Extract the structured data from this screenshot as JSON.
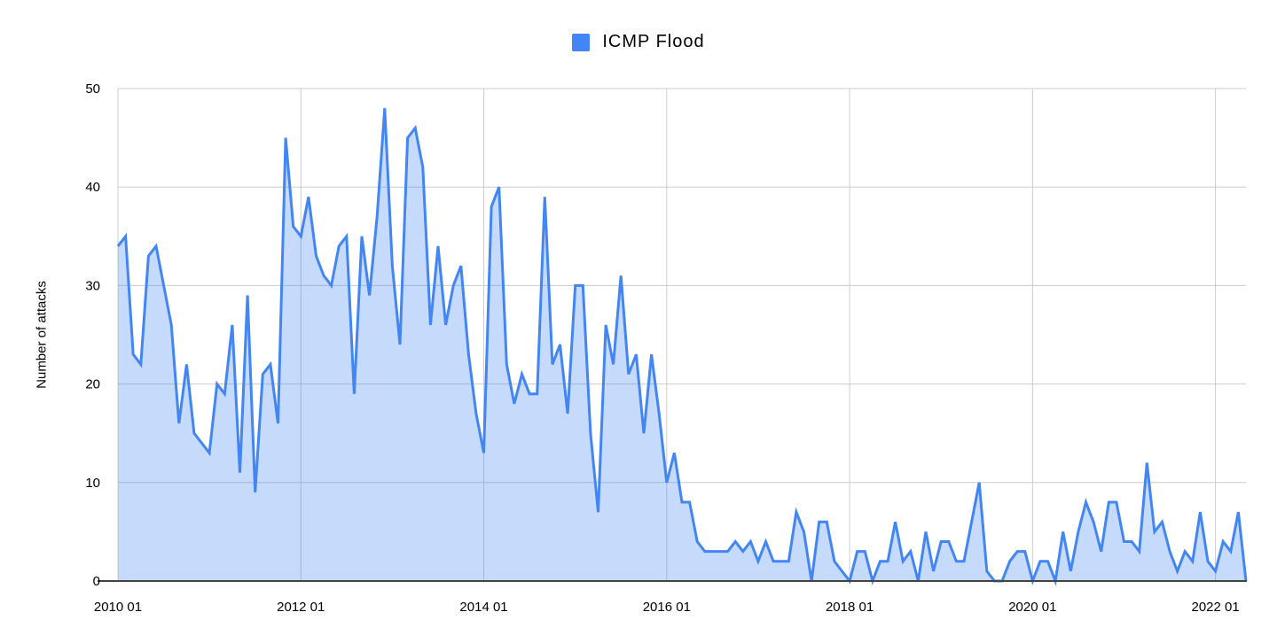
{
  "chart_data": {
    "type": "area",
    "title": "",
    "legend_position": "top",
    "ylabel": "Number of attacks",
    "ylim": [
      0,
      50
    ],
    "y_ticks": [
      0,
      10,
      20,
      30,
      40,
      50
    ],
    "grid": true,
    "x_frequency": "monthly",
    "x_start": "2010 01",
    "x_end": "2022 05",
    "x_tick_labels": [
      "2010 01",
      "2012 01",
      "2014 01",
      "2016 01",
      "2018 01",
      "2020 01",
      "2022 01"
    ],
    "x_tick_interval_months": 24,
    "series": [
      {
        "name": "ICMP Flood",
        "color": "#4285F4",
        "fill": "rgba(66,133,244,0.3)",
        "values": [
          34,
          35,
          23,
          22,
          33,
          34,
          30,
          26,
          16,
          22,
          15,
          14,
          13,
          20,
          19,
          26,
          11,
          29,
          9,
          21,
          22,
          16,
          45,
          36,
          35,
          39,
          33,
          31,
          30,
          34,
          35,
          19,
          35,
          29,
          37,
          48,
          32,
          24,
          45,
          46,
          42,
          26,
          34,
          26,
          30,
          32,
          23,
          17,
          13,
          38,
          40,
          22,
          18,
          21,
          19,
          19,
          39,
          22,
          24,
          17,
          30,
          30,
          15,
          7,
          26,
          22,
          31,
          21,
          23,
          15,
          23,
          17,
          10,
          13,
          8,
          8,
          4,
          3,
          3,
          3,
          3,
          4,
          3,
          4,
          2,
          4,
          2,
          2,
          2,
          7,
          5,
          0,
          6,
          6,
          2,
          1,
          0,
          3,
          3,
          0,
          2,
          2,
          6,
          2,
          3,
          0,
          5,
          1,
          4,
          4,
          2,
          2,
          6,
          10,
          1,
          0,
          0,
          2,
          3,
          3,
          0,
          2,
          2,
          0,
          5,
          1,
          5,
          8,
          6,
          3,
          8,
          8,
          4,
          4,
          3,
          12,
          5,
          6,
          3,
          1,
          3,
          2,
          7,
          2,
          1,
          4,
          3,
          7,
          0
        ]
      }
    ]
  },
  "colors": {
    "series_line": "#4285F4",
    "series_fill": "rgba(66,133,244,0.3)",
    "grid": "#CCCCCC",
    "axis_baseline": "#424242",
    "text": "#000000",
    "background": "#FFFFFF"
  }
}
